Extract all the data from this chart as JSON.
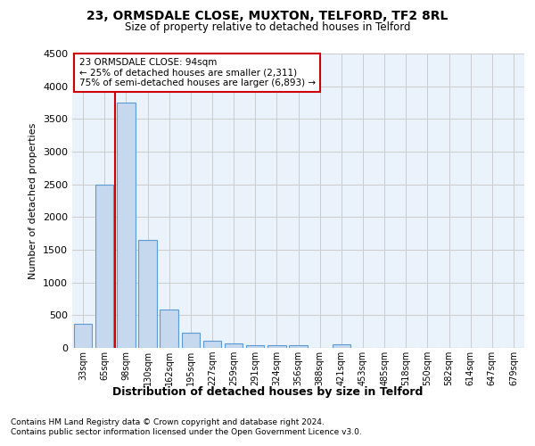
{
  "title1": "23, ORMSDALE CLOSE, MUXTON, TELFORD, TF2 8RL",
  "title2": "Size of property relative to detached houses in Telford",
  "xlabel": "Distribution of detached houses by size in Telford",
  "ylabel": "Number of detached properties",
  "footer1": "Contains HM Land Registry data © Crown copyright and database right 2024.",
  "footer2": "Contains public sector information licensed under the Open Government Licence v3.0.",
  "categories": [
    "33sqm",
    "65sqm",
    "98sqm",
    "130sqm",
    "162sqm",
    "195sqm",
    "227sqm",
    "259sqm",
    "291sqm",
    "324sqm",
    "356sqm",
    "388sqm",
    "421sqm",
    "453sqm",
    "485sqm",
    "518sqm",
    "550sqm",
    "582sqm",
    "614sqm",
    "647sqm",
    "679sqm"
  ],
  "values": [
    375,
    2500,
    3750,
    1650,
    590,
    230,
    110,
    65,
    45,
    40,
    35,
    0,
    50,
    0,
    0,
    0,
    0,
    0,
    0,
    0,
    0
  ],
  "bar_color": "#c5d8ed",
  "bar_edge_color": "#5b9bd5",
  "grid_color": "#cccccc",
  "background_color": "#eaf2fb",
  "annotation_text": "23 ORMSDALE CLOSE: 94sqm\n← 25% of detached houses are smaller (2,311)\n75% of semi-detached houses are larger (6,893) →",
  "annotation_box_color": "#ffffff",
  "annotation_border_color": "#cc0000",
  "vline_color": "#cc0000",
  "vline_x": 1.5,
  "ylim": [
    0,
    4500
  ],
  "yticks": [
    0,
    500,
    1000,
    1500,
    2000,
    2500,
    3000,
    3500,
    4000,
    4500
  ]
}
